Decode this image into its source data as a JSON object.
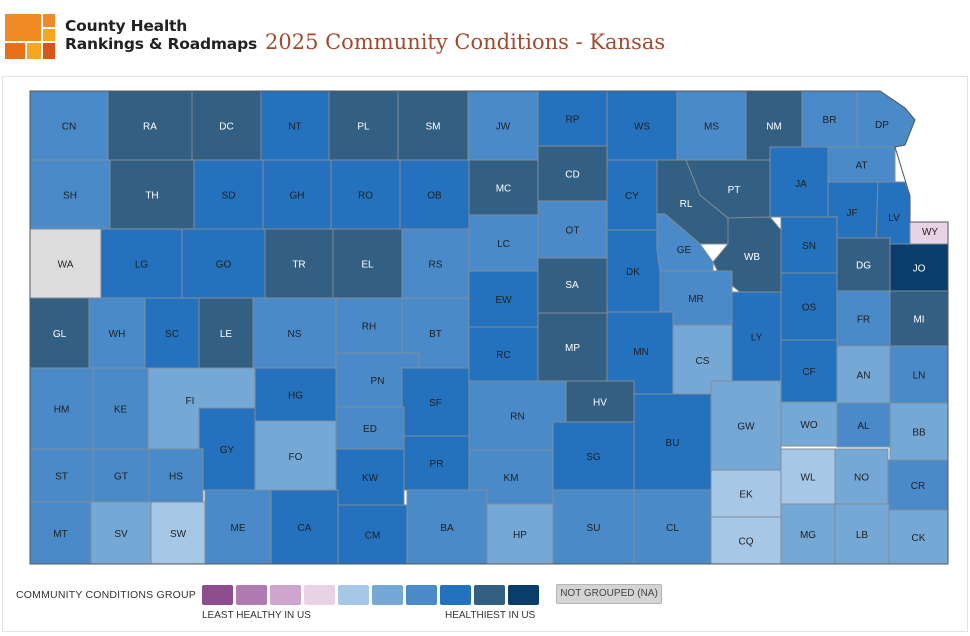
{
  "header": {
    "brand_line1": "County Health",
    "brand_line2": "Rankings & Roadmaps",
    "title": "2025 Community Conditions - Kansas"
  },
  "colors": {
    "g1": "#8e4e8e",
    "g2": "#b07bb0",
    "g3": "#cea5cd",
    "g4": "#e8d3e6",
    "g5": "#a7c7e6",
    "g6": "#76a8d6",
    "g7": "#4a8ac8",
    "g8": "#2472bd",
    "g9": "#335f82",
    "g10": "#0b3d6a",
    "na": "#dcdcdc"
  },
  "legend": {
    "title": "COMMUNITY CONDITIONS GROUP",
    "least_label": "LEAST HEALTHY IN US",
    "healthiest_label": "HEALTHIEST IN US",
    "na_label": "NOT GROUPED (NA)",
    "groups": [
      "g1",
      "g2",
      "g3",
      "g4",
      "g5",
      "g6",
      "g7",
      "g8",
      "g9",
      "g10"
    ]
  },
  "counties": [
    {
      "code": "CN",
      "group": "g7"
    },
    {
      "code": "RA",
      "group": "g9"
    },
    {
      "code": "DC",
      "group": "g9"
    },
    {
      "code": "NT",
      "group": "g8"
    },
    {
      "code": "PL",
      "group": "g9"
    },
    {
      "code": "SM",
      "group": "g9"
    },
    {
      "code": "JW",
      "group": "g7"
    },
    {
      "code": "RP",
      "group": "g8"
    },
    {
      "code": "WS",
      "group": "g8"
    },
    {
      "code": "MS",
      "group": "g7"
    },
    {
      "code": "NM",
      "group": "g9"
    },
    {
      "code": "BR",
      "group": "g7"
    },
    {
      "code": "DP",
      "group": "g7"
    },
    {
      "code": "SH",
      "group": "g7"
    },
    {
      "code": "TH",
      "group": "g9"
    },
    {
      "code": "SD",
      "group": "g8"
    },
    {
      "code": "GH",
      "group": "g8"
    },
    {
      "code": "RO",
      "group": "g8"
    },
    {
      "code": "OB",
      "group": "g8"
    },
    {
      "code": "MC",
      "group": "g9"
    },
    {
      "code": "CD",
      "group": "g9"
    },
    {
      "code": "CY",
      "group": "g8"
    },
    {
      "code": "RL",
      "group": "g9"
    },
    {
      "code": "PT",
      "group": "g9"
    },
    {
      "code": "JA",
      "group": "g8"
    },
    {
      "code": "AT",
      "group": "g7"
    },
    {
      "code": "JF",
      "group": "g8"
    },
    {
      "code": "LV",
      "group": "g8"
    },
    {
      "code": "WY",
      "group": "g4"
    },
    {
      "code": "WA",
      "group": "na"
    },
    {
      "code": "LG",
      "group": "g8"
    },
    {
      "code": "GO",
      "group": "g8"
    },
    {
      "code": "TR",
      "group": "g9"
    },
    {
      "code": "EL",
      "group": "g9"
    },
    {
      "code": "RS",
      "group": "g7"
    },
    {
      "code": "LC",
      "group": "g7"
    },
    {
      "code": "OT",
      "group": "g7"
    },
    {
      "code": "DK",
      "group": "g8"
    },
    {
      "code": "GE",
      "group": "g7"
    },
    {
      "code": "WB",
      "group": "g9"
    },
    {
      "code": "SN",
      "group": "g8"
    },
    {
      "code": "DG",
      "group": "g9"
    },
    {
      "code": "JO",
      "group": "g10"
    },
    {
      "code": "EW",
      "group": "g8"
    },
    {
      "code": "SA",
      "group": "g9"
    },
    {
      "code": "MR",
      "group": "g7"
    },
    {
      "code": "OS",
      "group": "g8"
    },
    {
      "code": "FR",
      "group": "g7"
    },
    {
      "code": "MI",
      "group": "g9"
    },
    {
      "code": "GL",
      "group": "g9"
    },
    {
      "code": "WH",
      "group": "g7"
    },
    {
      "code": "SC",
      "group": "g8"
    },
    {
      "code": "LE",
      "group": "g9"
    },
    {
      "code": "NS",
      "group": "g7"
    },
    {
      "code": "RH",
      "group": "g7"
    },
    {
      "code": "BT",
      "group": "g7"
    },
    {
      "code": "RC",
      "group": "g8"
    },
    {
      "code": "MP",
      "group": "g9"
    },
    {
      "code": "MN",
      "group": "g8"
    },
    {
      "code": "LY",
      "group": "g8"
    },
    {
      "code": "CS",
      "group": "g6"
    },
    {
      "code": "PN",
      "group": "g7"
    },
    {
      "code": "CF",
      "group": "g8"
    },
    {
      "code": "AN",
      "group": "g6"
    },
    {
      "code": "LN",
      "group": "g7"
    },
    {
      "code": "FI",
      "group": "g6"
    },
    {
      "code": "HG",
      "group": "g8"
    },
    {
      "code": "SF",
      "group": "g8"
    },
    {
      "code": "RN",
      "group": "g7"
    },
    {
      "code": "HV",
      "group": "g9"
    },
    {
      "code": "HM",
      "group": "g7"
    },
    {
      "code": "KE",
      "group": "g7"
    },
    {
      "code": "GY",
      "group": "g8"
    },
    {
      "code": "ED",
      "group": "g7"
    },
    {
      "code": "BU",
      "group": "g8"
    },
    {
      "code": "GW",
      "group": "g6"
    },
    {
      "code": "WO",
      "group": "g6"
    },
    {
      "code": "AL",
      "group": "g7"
    },
    {
      "code": "BB",
      "group": "g6"
    },
    {
      "code": "FO",
      "group": "g6"
    },
    {
      "code": "PR",
      "group": "g8"
    },
    {
      "code": "SG",
      "group": "g8"
    },
    {
      "code": "ST",
      "group": "g7"
    },
    {
      "code": "GT",
      "group": "g7"
    },
    {
      "code": "HS",
      "group": "g7"
    },
    {
      "code": "KW",
      "group": "g8"
    },
    {
      "code": "KM",
      "group": "g7"
    },
    {
      "code": "WL",
      "group": "g5"
    },
    {
      "code": "NO",
      "group": "g6"
    },
    {
      "code": "CR",
      "group": "g7"
    },
    {
      "code": "EK",
      "group": "g5"
    },
    {
      "code": "MT",
      "group": "g7"
    },
    {
      "code": "SV",
      "group": "g6"
    },
    {
      "code": "SW",
      "group": "g5"
    },
    {
      "code": "ME",
      "group": "g7"
    },
    {
      "code": "CA",
      "group": "g8"
    },
    {
      "code": "CM",
      "group": "g8"
    },
    {
      "code": "BA",
      "group": "g7"
    },
    {
      "code": "HP",
      "group": "g6"
    },
    {
      "code": "SU",
      "group": "g7"
    },
    {
      "code": "CL",
      "group": "g7"
    },
    {
      "code": "CQ",
      "group": "g5"
    },
    {
      "code": "MG",
      "group": "g6"
    },
    {
      "code": "LB",
      "group": "g6"
    },
    {
      "code": "CK",
      "group": "g6"
    }
  ]
}
